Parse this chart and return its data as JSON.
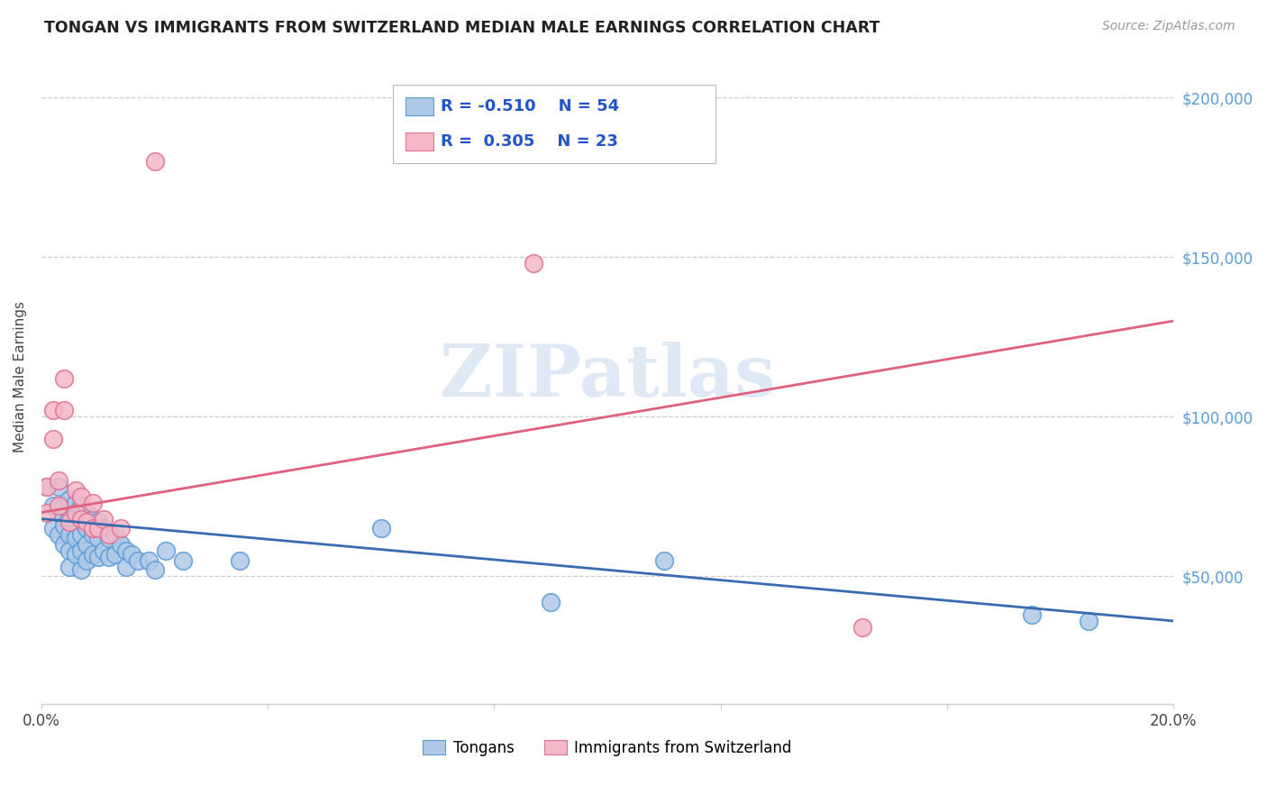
{
  "title": "TONGAN VS IMMIGRANTS FROM SWITZERLAND MEDIAN MALE EARNINGS CORRELATION CHART",
  "source": "Source: ZipAtlas.com",
  "ylabel": "Median Male Earnings",
  "watermark": "ZIPatlas",
  "legend_blue_r": "R = -0.510",
  "legend_blue_n": "N = 54",
  "legend_pink_r": "R =  0.305",
  "legend_pink_n": "N = 23",
  "legend_blue_label": "Tongans",
  "legend_pink_label": "Immigrants from Switzerland",
  "ytick_labels": [
    "$50,000",
    "$100,000",
    "$150,000",
    "$200,000"
  ],
  "ytick_values": [
    50000,
    100000,
    150000,
    200000
  ],
  "xmin": 0.0,
  "xmax": 0.2,
  "ymin": 10000,
  "ymax": 215000,
  "blue_scatter_x": [
    0.001,
    0.002,
    0.002,
    0.003,
    0.003,
    0.003,
    0.004,
    0.004,
    0.004,
    0.005,
    0.005,
    0.005,
    0.005,
    0.005,
    0.006,
    0.006,
    0.006,
    0.006,
    0.007,
    0.007,
    0.007,
    0.007,
    0.007,
    0.008,
    0.008,
    0.008,
    0.008,
    0.009,
    0.009,
    0.009,
    0.01,
    0.01,
    0.01,
    0.011,
    0.011,
    0.012,
    0.012,
    0.013,
    0.013,
    0.014,
    0.015,
    0.015,
    0.016,
    0.017,
    0.019,
    0.02,
    0.022,
    0.025,
    0.035,
    0.06,
    0.09,
    0.11,
    0.175,
    0.185
  ],
  "blue_scatter_y": [
    78000,
    72000,
    65000,
    78000,
    70000,
    63000,
    72000,
    66000,
    60000,
    74000,
    68000,
    63000,
    58000,
    53000,
    73000,
    68000,
    62000,
    57000,
    72000,
    67000,
    63000,
    58000,
    52000,
    70000,
    65000,
    60000,
    55000,
    68000,
    63000,
    57000,
    67000,
    62000,
    56000,
    65000,
    58000,
    62000,
    56000,
    63000,
    57000,
    60000,
    58000,
    53000,
    57000,
    55000,
    55000,
    52000,
    58000,
    55000,
    55000,
    65000,
    42000,
    55000,
    38000,
    36000
  ],
  "pink_scatter_x": [
    0.001,
    0.001,
    0.002,
    0.002,
    0.003,
    0.003,
    0.004,
    0.004,
    0.005,
    0.006,
    0.006,
    0.007,
    0.007,
    0.008,
    0.009,
    0.009,
    0.01,
    0.011,
    0.012,
    0.014,
    0.02,
    0.087,
    0.145
  ],
  "pink_scatter_y": [
    78000,
    70000,
    102000,
    93000,
    80000,
    72000,
    112000,
    102000,
    67000,
    77000,
    70000,
    75000,
    68000,
    67000,
    73000,
    65000,
    65000,
    68000,
    63000,
    65000,
    180000,
    148000,
    34000
  ],
  "blue_line_x": [
    0.0,
    0.2
  ],
  "blue_line_y": [
    68000,
    36000
  ],
  "pink_line_x": [
    0.0,
    0.2
  ],
  "pink_line_y": [
    70000,
    130000
  ],
  "title_color": "#222222",
  "source_color": "#999999",
  "blue_color": "#aec8e8",
  "blue_edge_color": "#5b9bd5",
  "blue_line_color": "#3a6aaf",
  "pink_color": "#f4b8c8",
  "pink_edge_color": "#e07090",
  "pink_line_color": "#e06080",
  "grid_color": "#cccccc",
  "right_tick_color": "#5b9bd5",
  "background_color": "#ffffff"
}
